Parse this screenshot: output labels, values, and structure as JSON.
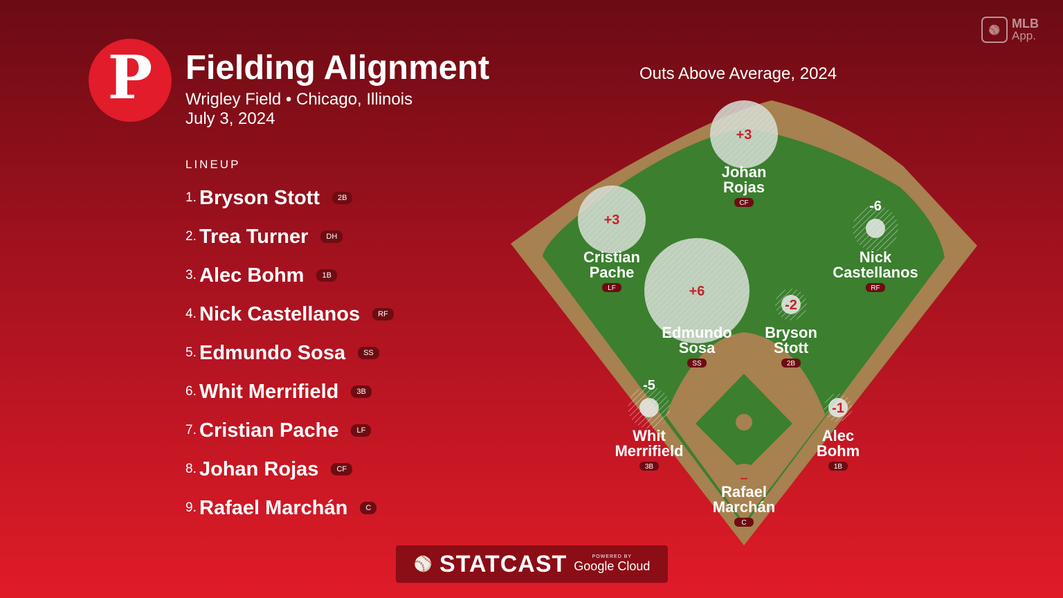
{
  "header": {
    "logo_letter": "P",
    "title": "Fielding Alignment",
    "venue": "Wrigley Field • Chicago, Illinois",
    "date": "July 3, 2024"
  },
  "lineup_label": "LINEUP",
  "lineup": [
    {
      "num": "1.",
      "name": "Bryson Stott",
      "pos": "2B"
    },
    {
      "num": "2.",
      "name": "Trea Turner",
      "pos": "DH"
    },
    {
      "num": "3.",
      "name": "Alec Bohm",
      "pos": "1B"
    },
    {
      "num": "4.",
      "name": "Nick Castellanos",
      "pos": "RF"
    },
    {
      "num": "5.",
      "name": "Edmundo Sosa",
      "pos": "SS"
    },
    {
      "num": "6.",
      "name": "Whit Merrifield",
      "pos": "3B"
    },
    {
      "num": "7.",
      "name": "Cristian Pache",
      "pos": "LF"
    },
    {
      "num": "8.",
      "name": "Johan Rojas",
      "pos": "CF"
    },
    {
      "num": "9.",
      "name": "Rafael Marchán",
      "pos": "C"
    }
  ],
  "oaa_title": "Outs Above Average, 2024",
  "fielders": [
    {
      "first": "Johan",
      "last": "Rojas",
      "pos": "CF",
      "oaa": "+3",
      "oaa_value": 3
    },
    {
      "first": "Cristian",
      "last": "Pache",
      "pos": "LF",
      "oaa": "+3",
      "oaa_value": 3
    },
    {
      "first": "Nick",
      "last": "Castellanos",
      "pos": "RF",
      "oaa": "-6",
      "oaa_value": -6
    },
    {
      "first": "Edmundo",
      "last": "Sosa",
      "pos": "SS",
      "oaa": "+6",
      "oaa_value": 6
    },
    {
      "first": "Bryson",
      "last": "Stott",
      "pos": "2B",
      "oaa": "-2",
      "oaa_value": -2
    },
    {
      "first": "Whit",
      "last": "Merrifield",
      "pos": "3B",
      "oaa": "-5",
      "oaa_value": -5
    },
    {
      "first": "Alec",
      "last": "Bohm",
      "pos": "1B",
      "oaa": "-1",
      "oaa_value": -1
    },
    {
      "first": "Rafael",
      "last": "Marchán",
      "pos": "C",
      "oaa": "–",
      "oaa_value": null
    }
  ],
  "footer": {
    "statcast": "STATCAST",
    "powered_by": "POWERED BY",
    "google_cloud": "Google Cloud"
  },
  "mlb_app": {
    "line1": "MLB",
    "line2": "App."
  },
  "colors": {
    "grass": "#3b7f2f",
    "dirt": "#a7814f",
    "positive_circle": "#d6ddd3",
    "negative_circle": "#e9ebe7",
    "oaa_text": "#c8202c",
    "badge": "#6e0c12"
  }
}
